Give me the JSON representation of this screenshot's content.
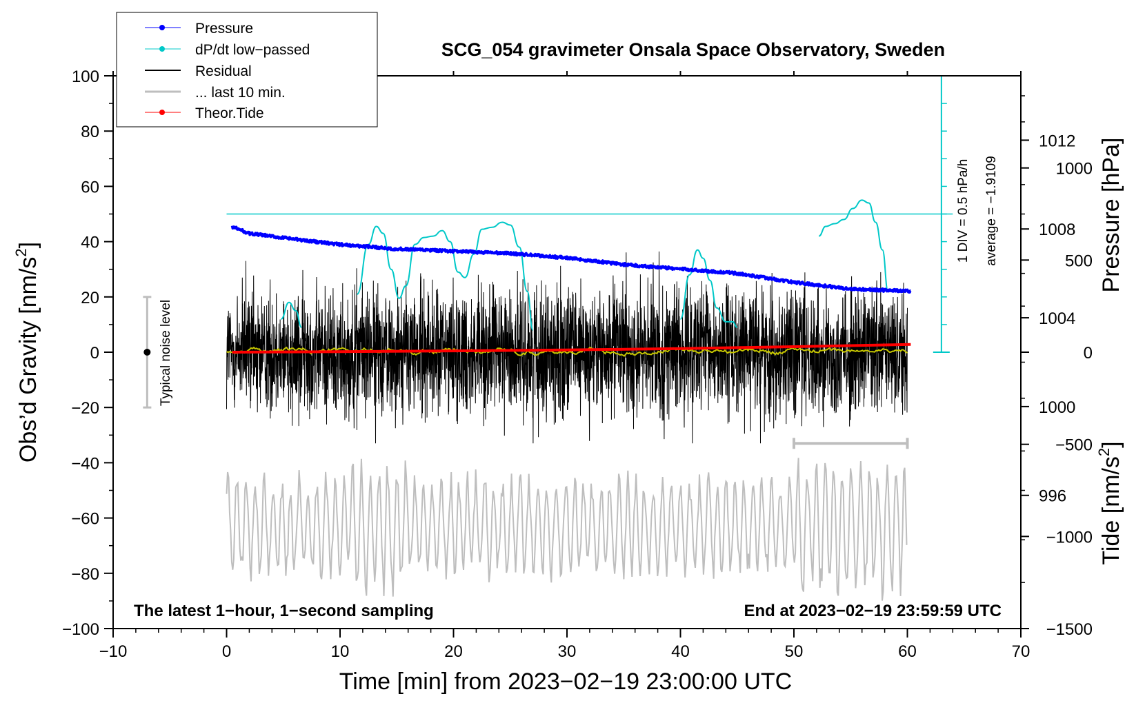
{
  "chart_data": {
    "type": "line",
    "title": "SCG_054 gravimeter Onsala Space Observatory, Sweden",
    "xlabel": "Time [min] from 2023−02−19 23:00:00 UTC",
    "ylabel_left": "Obs’d Gravity [nm/s²]",
    "ylabel_left_parts": {
      "main": "Obs’d Gravity [nm/s",
      "sup": "2",
      "end": "]"
    },
    "ylabel_right_top": "Pressure [hPa]",
    "ylabel_right_bottom": "Tide [nm/s²]",
    "ylabel_right_bottom_parts": {
      "main": "Tide [nm/s",
      "sup": "2",
      "end": "]"
    },
    "xlim": [
      -10,
      70
    ],
    "ylim": [
      -100,
      100
    ],
    "xticks": [
      -10,
      0,
      10,
      20,
      30,
      40,
      50,
      60,
      70
    ],
    "xtick_labels": [
      "−10",
      "0",
      "10",
      "20",
      "30",
      "40",
      "50",
      "60",
      "70"
    ],
    "yticks": [
      100,
      80,
      60,
      40,
      20,
      0,
      -20,
      -40,
      -60,
      -80,
      -100
    ],
    "ytick_labels": [
      "100",
      "80",
      "60",
      "40",
      "20",
      "0",
      "−20",
      "−40",
      "−60",
      "−80",
      "−100"
    ],
    "pressure_axis": {
      "ticks": [
        1012,
        1008,
        1004,
        1000,
        996
      ],
      "tick_labels": [
        "1012",
        "1008",
        "1004",
        "1000",
        "996"
      ],
      "range_hPa": [
        990.0,
        1014.9
      ]
    },
    "tide_axis": {
      "ticks": [
        1000,
        500,
        0,
        -500,
        -1000,
        -1500
      ],
      "tick_labels": [
        "1000",
        "500",
        "0",
        "−500",
        "−1000",
        "−1500"
      ],
      "range_nms2": [
        -1500,
        1500
      ]
    },
    "legend": [
      {
        "label": "Pressure",
        "color": "#0000ff",
        "marker": "dot"
      },
      {
        "label": "dP/dt low−passed",
        "color": "#00c8c8",
        "marker": "dot"
      },
      {
        "label": "Residual",
        "color": "#000000",
        "marker": "none"
      },
      {
        "label": "... last 10 min.",
        "color": "#bebebe",
        "marker": "none"
      },
      {
        "label": "Theor.Tide",
        "color": "#ff0000",
        "marker": "dot"
      }
    ],
    "series": {
      "pressure": {
        "name": "Pressure",
        "color": "#0000ff",
        "unit": "hPa",
        "x": [
          0.5,
          2,
          5,
          10,
          15,
          20,
          25,
          30,
          35,
          40,
          45,
          50,
          55,
          60.3
        ],
        "y": [
          1008.1,
          1007.8,
          1007.6,
          1007.3,
          1007.1,
          1007.0,
          1006.9,
          1006.7,
          1006.4,
          1006.2,
          1006.0,
          1005.6,
          1005.3,
          1005.2
        ]
      },
      "dpdt_lowpassed": {
        "name": "dP/dt low−passed",
        "color": "#00c8c8",
        "x": [
          4.8,
          5.5,
          6.1,
          6.6,
          11.5,
          12.5,
          13.2,
          13.8,
          14.5,
          15.2,
          15.8,
          16.6,
          17.4,
          18.2,
          19.0,
          19.7,
          20.4,
          21.0,
          21.8,
          22.5,
          23.4,
          24.3,
          25.0,
          25.8,
          26.5,
          27.0,
          40.0,
          40.8,
          41.5,
          42.0,
          42.6,
          43.2,
          44.0,
          44.6,
          45.0,
          52.2,
          52.8,
          53.6,
          54.4,
          55.2,
          56.0,
          56.6,
          57.2,
          57.8,
          58.3
        ],
        "y": [
          12,
          18,
          15,
          9,
          21,
          39,
          45.5,
          43,
          30,
          19.5,
          24,
          39,
          41.5,
          42,
          44,
          40,
          29,
          27,
          35.5,
          44.5,
          45.2,
          47,
          46,
          38,
          22,
          8,
          12,
          28,
          37,
          34,
          26,
          16,
          11,
          11,
          9,
          42,
          45.5,
          46.5,
          48,
          52,
          55,
          54,
          47,
          37,
          22
        ]
      },
      "residual": {
        "name": "Residual",
        "color": "#000000",
        "x_range": [
          0,
          60
        ],
        "noise_amplitude_nms2": 14,
        "extremes": {
          "max": 43,
          "min": -33
        }
      },
      "residual_lowpassed": {
        "color": "#c8c800",
        "x_range": [
          0,
          60
        ],
        "y_about": 0.5
      },
      "last_10_min": {
        "name": "... last 10 min.",
        "color": "#bebebe",
        "x_range": [
          0,
          60
        ],
        "center_nms2": -63,
        "amplitude_nms2": 18
      },
      "theor_tide": {
        "name": "Theor.Tide",
        "color": "#ff0000",
        "unit": "nm/s²",
        "x": [
          0.5,
          10,
          20,
          30,
          40,
          50,
          60.3
        ],
        "y": [
          0,
          3,
          7,
          12,
          20,
          30,
          42
        ]
      }
    },
    "annotations": {
      "zero_reference_value": 50,
      "dpdt_scale_label": "1 DIV = 0.5 hPa/h",
      "dpdt_average_label": "average = −1.9109",
      "noise_label": "Typical noise level",
      "noise_range_nms2": [
        -20,
        20
      ],
      "last10_bracket_min": [
        50,
        60
      ],
      "bottom_left": "The latest 1−hour, 1−second sampling",
      "bottom_right": "End at 2023−02−19 23:59:59 UTC"
    }
  },
  "colors": {
    "pressure": "#0000ff",
    "dpdt": "#00c8c8",
    "residual": "#000000",
    "last10": "#bebebe",
    "tide": "#ff0000",
    "residual_smooth": "#c8c800"
  }
}
